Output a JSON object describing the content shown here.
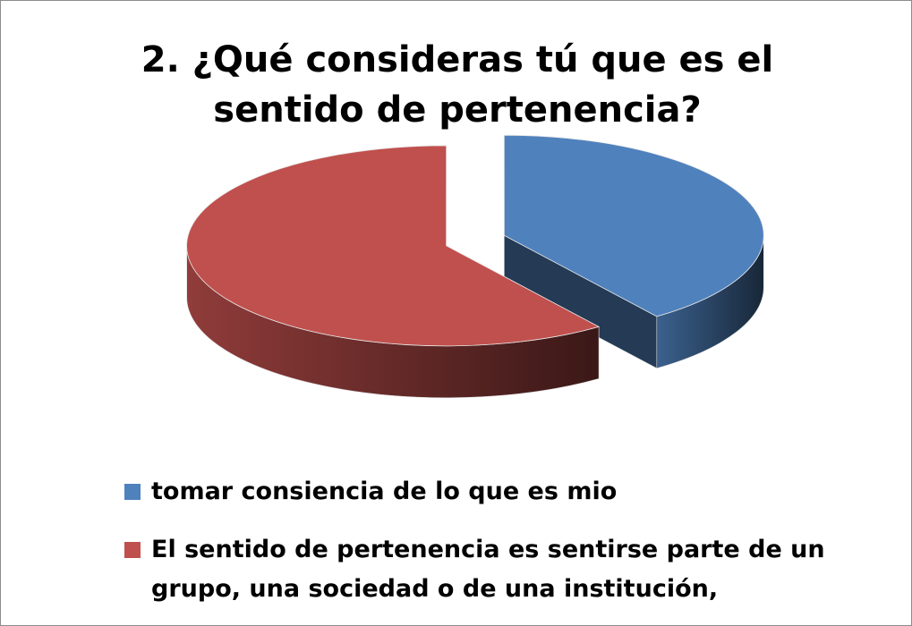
{
  "chart_data": {
    "type": "pie",
    "title": "2. ¿Qué consideras tú que es el sentido de pertenencia?",
    "categories": [
      "tomar consiencia de lo que es mio",
      "El sentido de pertenencia es sentirse parte de un grupo, una sociedad o de una institución,"
    ],
    "values": [
      40,
      60
    ],
    "colors": [
      "#4f81bd",
      "#c0504d"
    ],
    "legend": "bottom"
  }
}
